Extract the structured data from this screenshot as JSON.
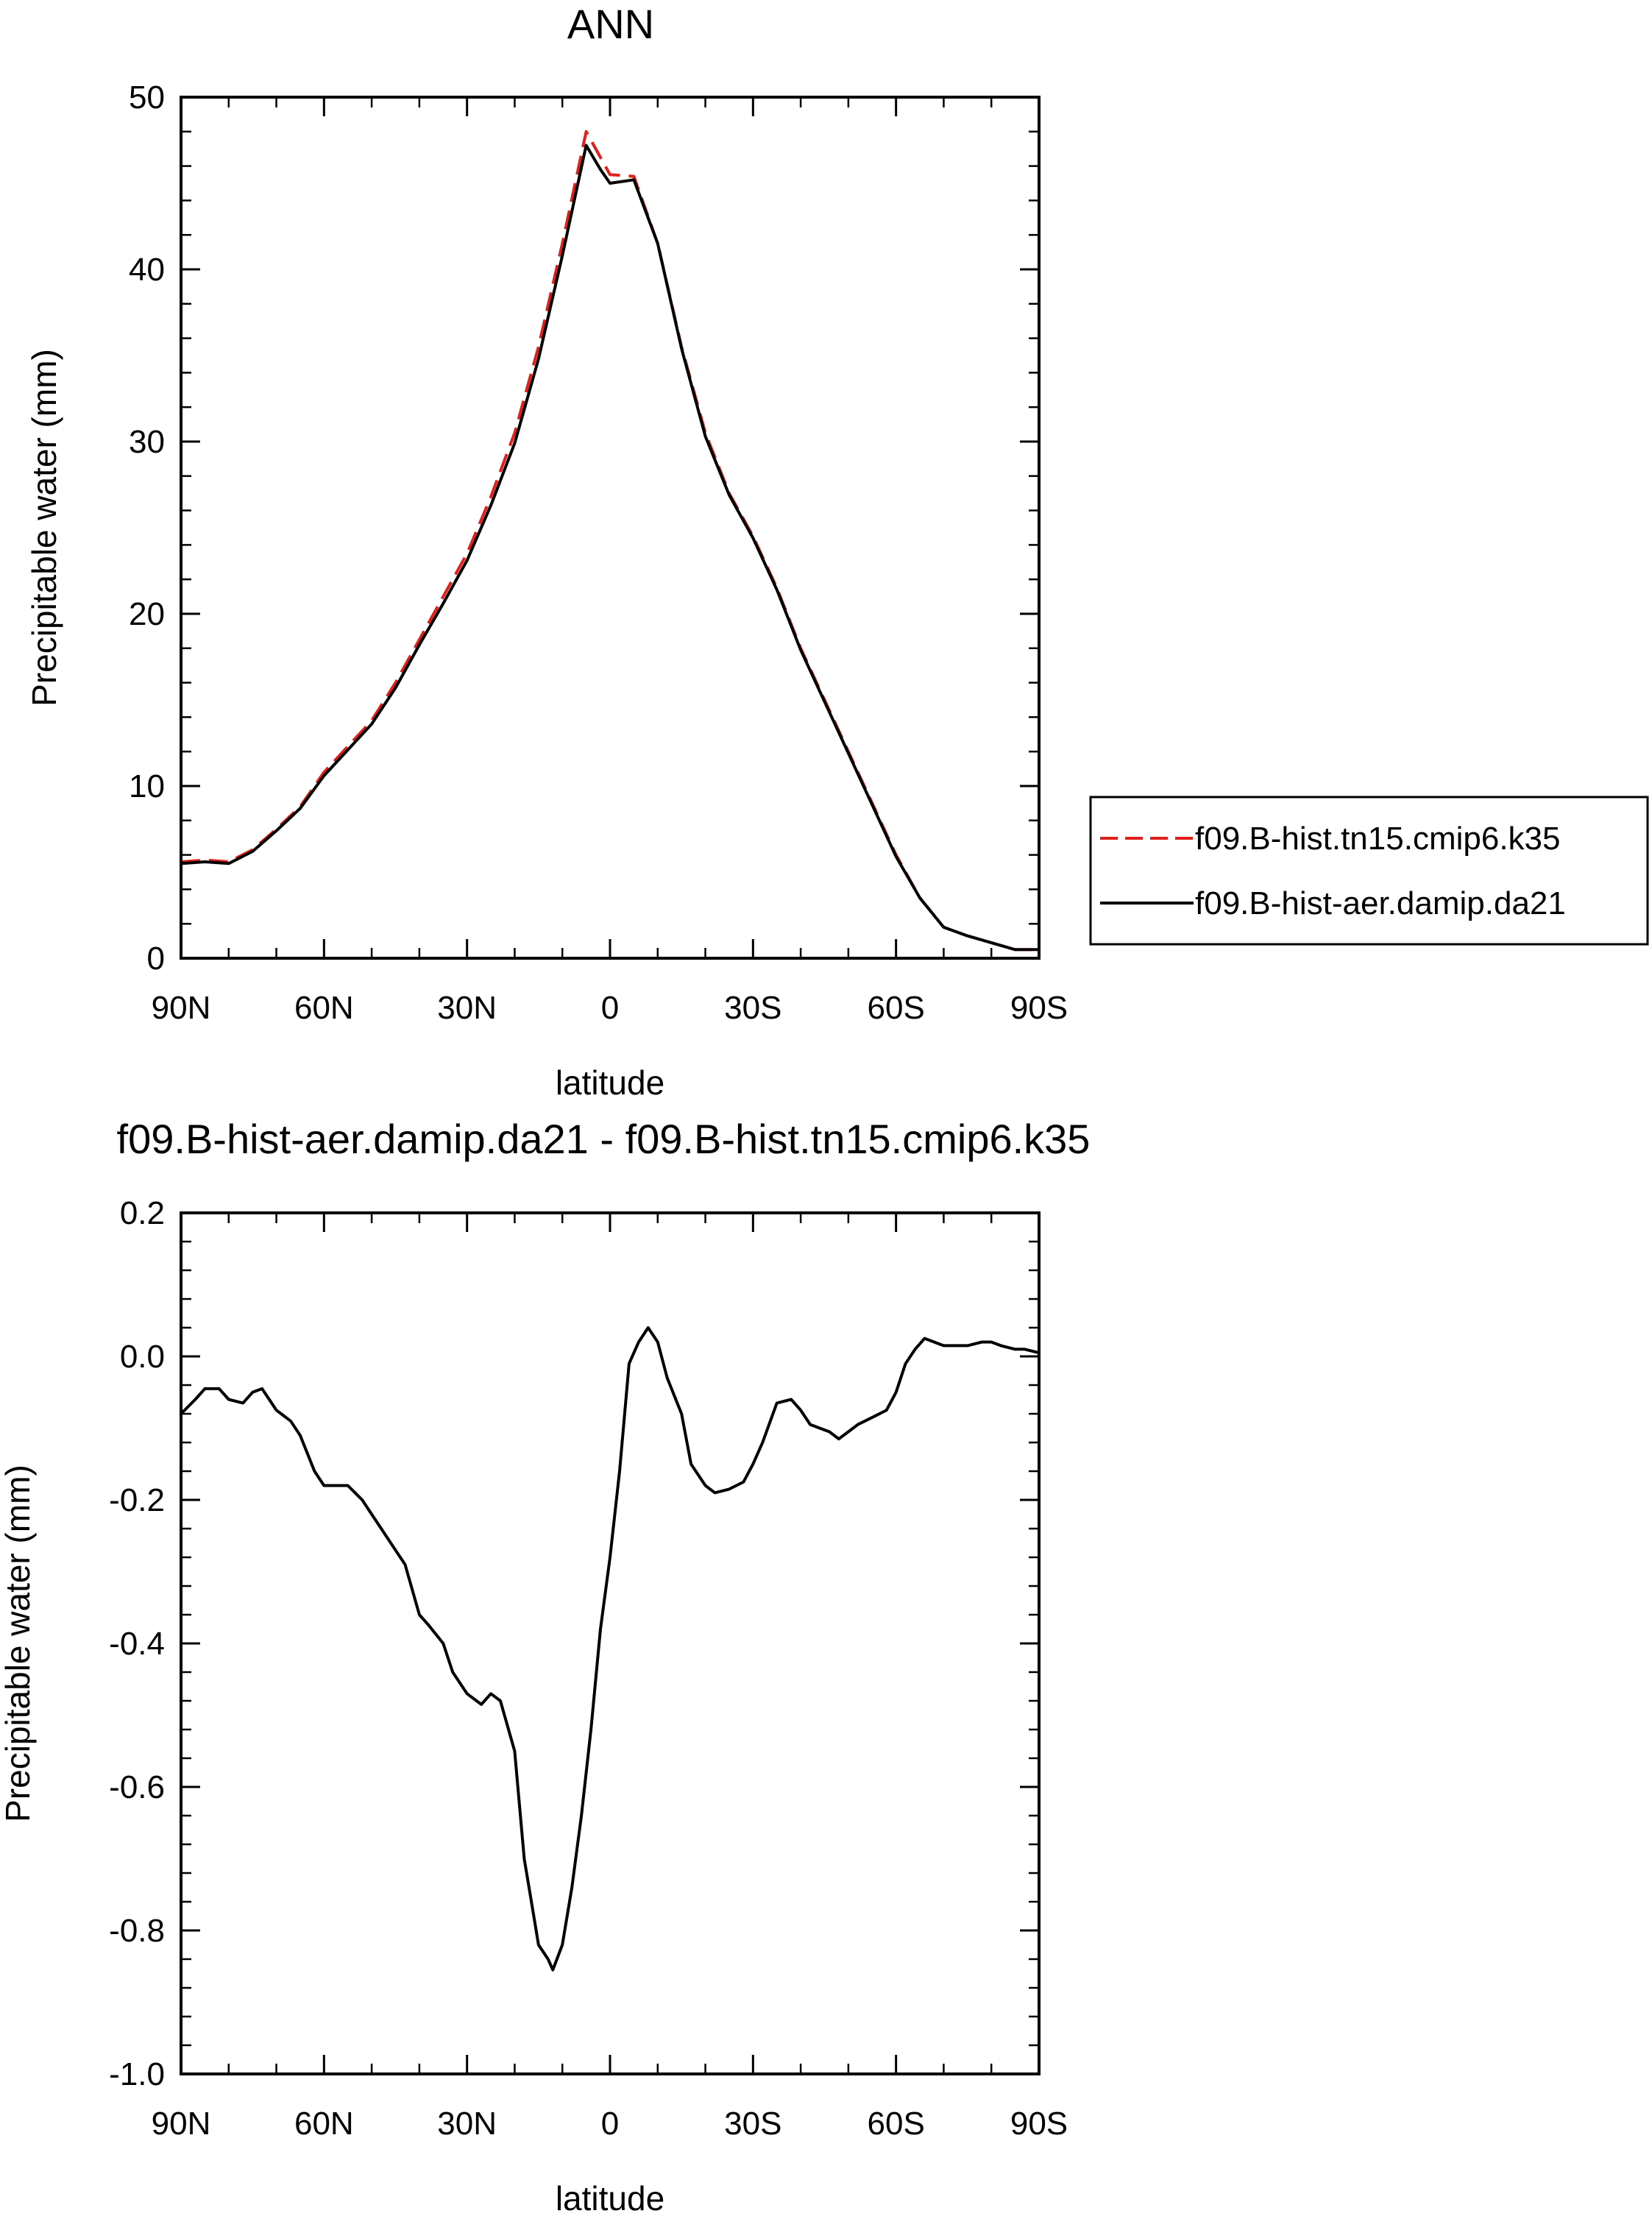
{
  "chart_data": [
    {
      "type": "line",
      "title": "ANN",
      "xlabel": "latitude",
      "ylabel": "Precipitable water (mm)",
      "xlim": [
        90,
        -90
      ],
      "ylim": [
        0,
        50
      ],
      "x_ticks": [
        90,
        60,
        30,
        0,
        -30,
        -60,
        -90
      ],
      "x_tick_labels": [
        "90N",
        "60N",
        "30N",
        "0",
        "30S",
        "60S",
        "90S"
      ],
      "y_ticks": [
        0,
        10,
        20,
        30,
        40,
        50
      ],
      "y_tick_labels": [
        "0",
        "10",
        "20",
        "30",
        "40",
        "50"
      ],
      "legend_position": "right",
      "series": [
        {
          "name": "f09.B-hist.tn15.cmip6.k35",
          "color": "#e0201b",
          "style": "dashed",
          "x": [
            90,
            85,
            80,
            75,
            70,
            65,
            60,
            55,
            50,
            45,
            40,
            35,
            30,
            25,
            20,
            15,
            10,
            5,
            2,
            0,
            -5,
            -10,
            -15,
            -20,
            -25,
            -30,
            -35,
            -40,
            -45,
            -50,
            -55,
            -60,
            -65,
            -70,
            -75,
            -80,
            -85,
            -90
          ],
          "values": [
            5.6,
            5.7,
            5.6,
            6.3,
            7.5,
            8.8,
            10.8,
            12.3,
            13.8,
            16.0,
            18.5,
            21.0,
            23.5,
            26.8,
            30.5,
            35.5,
            41.5,
            48.0,
            46.5,
            45.5,
            45.4,
            41.5,
            35.5,
            30.5,
            27.0,
            24.5,
            21.5,
            18.0,
            15.0,
            12.0,
            9.0,
            6.0,
            3.5,
            1.8,
            1.3,
            0.9,
            0.5,
            0.5
          ]
        },
        {
          "name": "f09.B-hist-aer.damip.da21",
          "color": "#000000",
          "style": "solid",
          "x": [
            90,
            85,
            80,
            75,
            70,
            65,
            60,
            55,
            50,
            45,
            40,
            35,
            30,
            25,
            20,
            15,
            10,
            5,
            2,
            0,
            -5,
            -10,
            -15,
            -20,
            -25,
            -30,
            -35,
            -40,
            -45,
            -50,
            -55,
            -60,
            -65,
            -70,
            -75,
            -80,
            -85,
            -90
          ],
          "values": [
            5.5,
            5.6,
            5.5,
            6.2,
            7.4,
            8.7,
            10.6,
            12.1,
            13.6,
            15.7,
            18.2,
            20.6,
            23.1,
            26.3,
            29.9,
            34.8,
            40.8,
            47.2,
            45.8,
            45.0,
            45.2,
            41.5,
            35.4,
            30.3,
            26.9,
            24.4,
            21.4,
            17.9,
            14.9,
            11.9,
            8.9,
            5.9,
            3.5,
            1.8,
            1.3,
            0.9,
            0.5,
            0.5
          ]
        }
      ]
    },
    {
      "type": "line",
      "title": "f09.B-hist-aer.damip.da21 - f09.B-hist.tn15.cmip6.k35",
      "xlabel": "latitude",
      "ylabel": "Precipitable water (mm)",
      "xlim": [
        90,
        -90
      ],
      "ylim": [
        -1.0,
        0.2
      ],
      "x_ticks": [
        90,
        60,
        30,
        0,
        -30,
        -60,
        -90
      ],
      "x_tick_labels": [
        "90N",
        "60N",
        "30N",
        "0",
        "30S",
        "60S",
        "90S"
      ],
      "y_ticks": [
        -1.0,
        -0.8,
        -0.6,
        -0.4,
        -0.2,
        0.0,
        0.2
      ],
      "y_tick_labels": [
        "-1.0",
        "-0.8",
        "-0.6",
        "-0.4",
        "-0.2",
        "0.0",
        "0.2"
      ],
      "series": [
        {
          "name": "difference",
          "color": "#000000",
          "style": "solid",
          "x": [
            90,
            87,
            85,
            82,
            80,
            77,
            75,
            73,
            70,
            67,
            65,
            62,
            60,
            57,
            55,
            52,
            50,
            48,
            45,
            43,
            40,
            38,
            35,
            33,
            30,
            28,
            27,
            25,
            23,
            20,
            18,
            16,
            15,
            13,
            12,
            10,
            8,
            6,
            4,
            2,
            0,
            -2,
            -4,
            -6,
            -8,
            -10,
            -12,
            -15,
            -17,
            -20,
            -22,
            -25,
            -28,
            -30,
            -32,
            -35,
            -38,
            -40,
            -42,
            -44,
            -46,
            -48,
            -50,
            -52,
            -55,
            -58,
            -60,
            -62,
            -64,
            -66,
            -68,
            -70,
            -72,
            -75,
            -78,
            -80,
            -82,
            -85,
            -87,
            -90
          ],
          "values": [
            -0.08,
            -0.06,
            -0.045,
            -0.045,
            -0.06,
            -0.065,
            -0.05,
            -0.045,
            -0.075,
            -0.09,
            -0.11,
            -0.16,
            -0.18,
            -0.18,
            -0.18,
            -0.2,
            -0.22,
            -0.24,
            -0.27,
            -0.29,
            -0.36,
            -0.375,
            -0.4,
            -0.44,
            -0.47,
            -0.48,
            -0.485,
            -0.47,
            -0.48,
            -0.55,
            -0.7,
            -0.78,
            -0.82,
            -0.84,
            -0.855,
            -0.82,
            -0.74,
            -0.64,
            -0.52,
            -0.38,
            -0.28,
            -0.16,
            -0.01,
            0.02,
            0.04,
            0.02,
            -0.03,
            -0.08,
            -0.15,
            -0.18,
            -0.19,
            -0.185,
            -0.175,
            -0.15,
            -0.12,
            -0.065,
            -0.06,
            -0.075,
            -0.095,
            -0.1,
            -0.105,
            -0.115,
            -0.105,
            -0.095,
            -0.085,
            -0.075,
            -0.05,
            -0.01,
            0.01,
            0.025,
            0.02,
            0.015,
            0.015,
            0.015,
            0.02,
            0.02,
            0.015,
            0.01,
            0.01,
            0.005
          ]
        }
      ]
    }
  ]
}
